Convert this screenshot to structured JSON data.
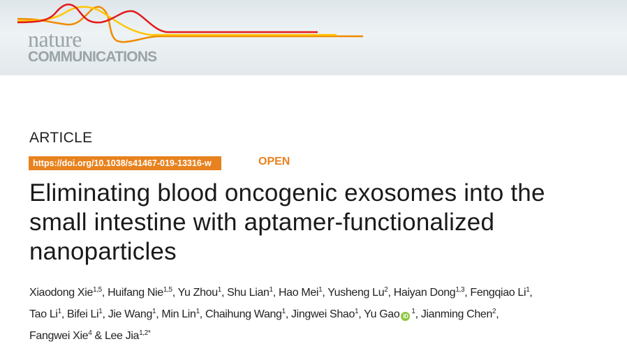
{
  "journal": {
    "logo_line1": "nature",
    "logo_line2": "COMMUNICATIONS",
    "colors": {
      "red": "#e3191b",
      "orange": "#f08a00",
      "yellow": "#ffc600",
      "logo_gray": "#9aa3a7"
    }
  },
  "article_type": "ARTICLE",
  "doi": "https://doi.org/10.1038/s41467-019-13316-w",
  "access": "OPEN",
  "accent_color": "#e8821e",
  "title_lines": [
    "Eliminating blood oncogenic exosomes into the",
    "small intestine with aptamer-functionalized",
    "nanoparticles"
  ],
  "author_lines": [
    [
      {
        "name": "Xiaodong Xie",
        "sup": "1,5",
        "sep": ", "
      },
      {
        "name": "Huifang Nie",
        "sup": "1,5",
        "sep": ", "
      },
      {
        "name": "Yu Zhou",
        "sup": "1",
        "sep": ", "
      },
      {
        "name": "Shu Lian",
        "sup": "1",
        "sep": ", "
      },
      {
        "name": "Hao Mei",
        "sup": "1",
        "sep": ", "
      },
      {
        "name": "Yusheng Lu",
        "sup": "2",
        "sep": ", "
      },
      {
        "name": "Haiyan Dong",
        "sup": "1,3",
        "sep": ", "
      },
      {
        "name": "Fengqiao Li",
        "sup": "1",
        "sep": ","
      }
    ],
    [
      {
        "name": "Tao Li",
        "sup": "1",
        "sep": ", "
      },
      {
        "name": "Bifei Li",
        "sup": "1",
        "sep": ", "
      },
      {
        "name": "Jie Wang",
        "sup": "1",
        "sep": ", "
      },
      {
        "name": "Min Lin",
        "sup": "1",
        "sep": ", "
      },
      {
        "name": "Chaihung Wang",
        "sup": "1",
        "sep": ", "
      },
      {
        "name": "Jingwei Shao",
        "sup": "1",
        "sep": ", "
      },
      {
        "name": "Yu Gao",
        "sup": "1",
        "sep": ", ",
        "orcid": true
      },
      {
        "name": "Jianming Chen",
        "sup": "2",
        "sep": ","
      }
    ],
    [
      {
        "name": "Fangwei Xie",
        "sup": "4",
        "sep": " & "
      },
      {
        "name": "Lee Jia",
        "sup": "1,2*",
        "sep": ""
      }
    ]
  ],
  "orcid_icon_label": "iD"
}
